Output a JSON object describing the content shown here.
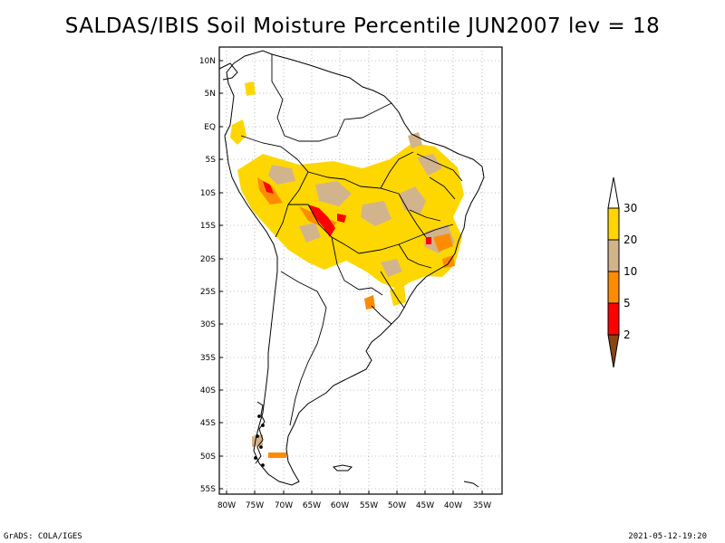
{
  "title": "SALDAS/IBIS Soil Moisture Percentile JUN2007 lev = 18",
  "footer": {
    "left": "GrADS: COLA/IGES",
    "right": "2021-05-12-19:20"
  },
  "axes": {
    "lon_ticks": [
      "80W",
      "75W",
      "70W",
      "65W",
      "60W",
      "55W",
      "50W",
      "45W",
      "40W",
      "35W"
    ],
    "lat_ticks": [
      "10N",
      "5N",
      "EQ",
      "5S",
      "10S",
      "15S",
      "20S",
      "25S",
      "30S",
      "35S",
      "40S",
      "45S",
      "50S",
      "55S"
    ]
  },
  "colorbar": {
    "labels": [
      "2",
      "5",
      "10",
      "20",
      "30"
    ],
    "colors": {
      "below_2": "#8B4513",
      "2_5": "#FF0000",
      "5_10": "#FF8C00",
      "10_20": "#D2B48C",
      "20_30": "#FFD700",
      "above_30": "#FFFFFF"
    }
  },
  "grid": {
    "dotted": true
  }
}
